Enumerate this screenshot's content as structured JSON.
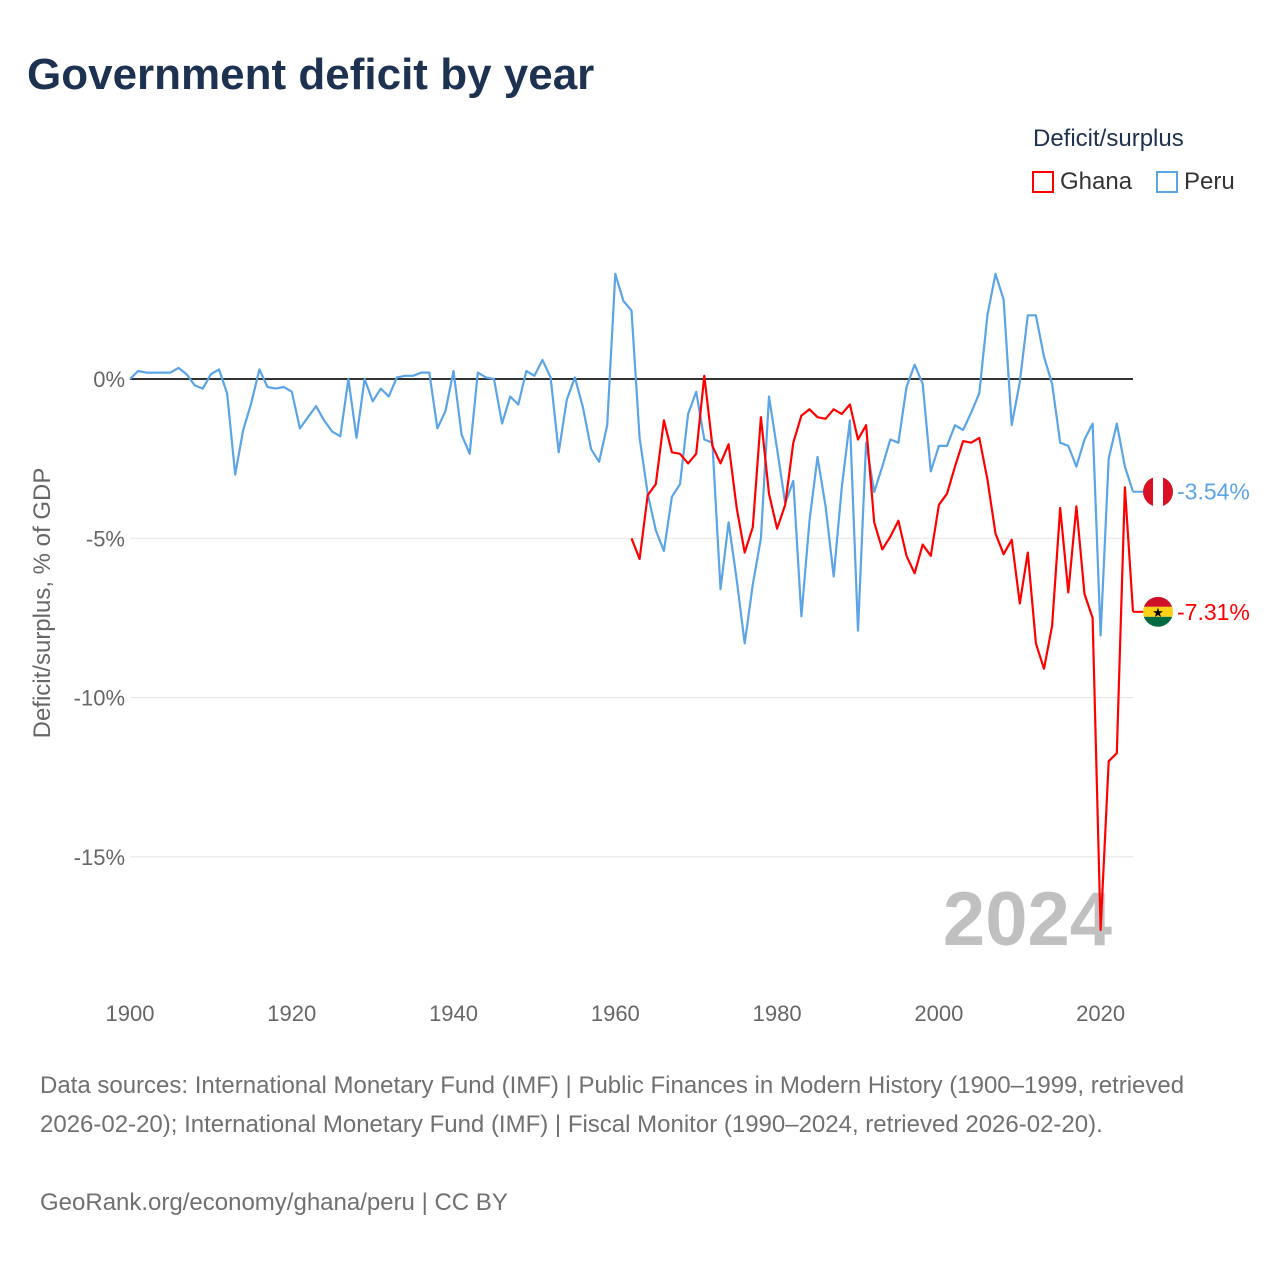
{
  "title": "Government deficit by year",
  "legend": {
    "title": "Deficit/surplus"
  },
  "footer": {
    "sources": "Data sources: International Monetary Fund (IMF) | Public Finances in Modern History (1900–1999, retrieved 2026-02-20); International Monetary Fund (IMF) | Fiscal Monitor (1990–2024, retrieved 2026-02-20).",
    "credit": "GeoRank.org/economy/ghana/peru | CC BY"
  },
  "chart_data": {
    "type": "line",
    "title": "Government deficit by year",
    "xlabel": "",
    "ylabel": "Deficit/surplus, % of GDP",
    "xlim": [
      1900,
      2024
    ],
    "ylim": [
      -17.5,
      3.5
    ],
    "xticks": [
      1900,
      1920,
      1940,
      1960,
      1980,
      2000,
      2020
    ],
    "yticks": [
      {
        "v": 0,
        "label": "0%"
      },
      {
        "v": -5,
        "label": "-5%"
      },
      {
        "v": -10,
        "label": "-10%"
      },
      {
        "v": -15,
        "label": "-15%"
      }
    ],
    "grid": true,
    "legend_position": "top-right",
    "year_watermark": "2024",
    "series": [
      {
        "name": "Peru",
        "color": "#5ba4e6",
        "end_label": "-3.54%",
        "start": 1900,
        "values": [
          0.0,
          0.25,
          0.2,
          0.2,
          0.2,
          0.2,
          0.35,
          0.15,
          -0.2,
          -0.3,
          0.15,
          0.3,
          -0.45,
          -3.0,
          -1.6,
          -0.75,
          0.3,
          -0.25,
          -0.3,
          -0.25,
          -0.4,
          -1.55,
          -1.2,
          -0.85,
          -1.3,
          -1.65,
          -1.8,
          0.0,
          -1.85,
          0.0,
          -0.7,
          -0.3,
          -0.55,
          0.05,
          0.1,
          0.1,
          0.2,
          0.2,
          -1.55,
          -1.0,
          0.25,
          -1.75,
          -2.35,
          0.2,
          0.05,
          0.0,
          -1.4,
          -0.55,
          -0.8,
          0.25,
          0.1,
          0.6,
          0.05,
          -2.3,
          -0.65,
          0.05,
          -0.9,
          -2.2,
          -2.6,
          -1.45,
          3.3,
          2.45,
          2.15,
          -1.85,
          -3.6,
          -4.75,
          -5.4,
          -3.7,
          -3.3,
          -1.1,
          -0.4,
          -1.9,
          -2.0,
          -6.6,
          -4.5,
          -6.3,
          -8.3,
          -6.45,
          -5.0,
          -0.55,
          -2.2,
          -3.9,
          -3.2,
          -7.45,
          -4.45,
          -2.45,
          -4.0,
          -6.2,
          -3.4,
          -1.3,
          -7.9,
          -2.0,
          -3.55,
          -2.75,
          -1.9,
          -2.0,
          -0.25,
          0.45,
          -0.15,
          -2.9,
          -2.1,
          -2.1,
          -1.45,
          -1.6,
          -1.05,
          -0.45,
          2.0,
          3.3,
          2.5,
          -1.45,
          -0.1,
          2.0,
          2.0,
          0.7,
          -0.15,
          -2.0,
          -2.1,
          -2.75,
          -1.9,
          -1.4,
          -8.05,
          -2.5,
          -1.4,
          -2.75,
          -3.54
        ]
      },
      {
        "name": "Ghana",
        "color": "#ff0000",
        "end_label": "-7.31%",
        "start": 1962,
        "values": [
          -5.0,
          -5.65,
          -3.65,
          -3.3,
          -1.3,
          -2.3,
          -2.35,
          -2.65,
          -2.35,
          0.1,
          -2.1,
          -2.65,
          -2.05,
          -4.05,
          -5.45,
          -4.65,
          -1.2,
          -3.6,
          -4.7,
          -3.95,
          -2.0,
          -1.15,
          -0.95,
          -1.2,
          -1.25,
          -0.95,
          -1.1,
          -0.8,
          -1.9,
          -1.45,
          -4.5,
          -5.35,
          -4.95,
          -4.45,
          -5.55,
          -6.1,
          -5.2,
          -5.55,
          -3.95,
          -3.6,
          -2.75,
          -1.95,
          -2.0,
          -1.85,
          -3.15,
          -4.85,
          -5.5,
          -5.05,
          -7.05,
          -5.45,
          -8.3,
          -9.1,
          -7.75,
          -4.05,
          -6.7,
          -4.0,
          -6.75,
          -7.5,
          -17.3,
          -12.0,
          -11.75,
          -3.4,
          -7.31
        ]
      }
    ]
  }
}
